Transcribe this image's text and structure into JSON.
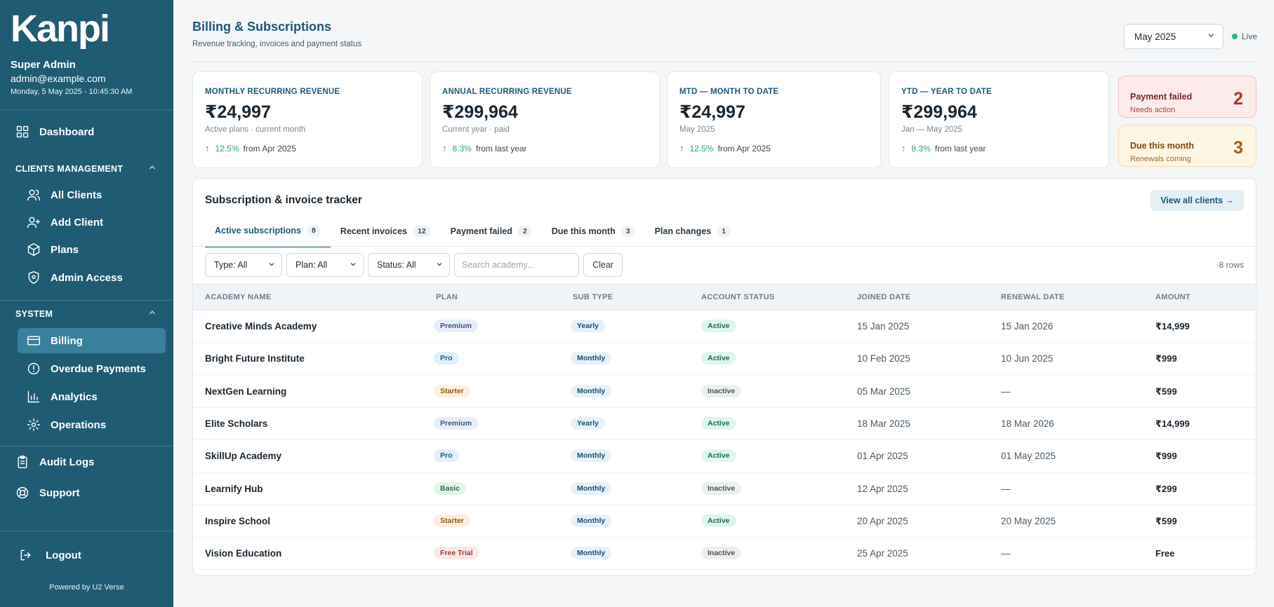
{
  "sidebar": {
    "logo": "Kanpi",
    "user_name": "Super Admin",
    "user_email": "admin@example.com",
    "user_date": "Monday, 5 May 2025 - 10:45:30 AM",
    "dashboard": "Dashboard",
    "clients_section": "CLIENTS MANAGEMENT",
    "clients_items": [
      "All Clients",
      "Add Client",
      "Plans",
      "Admin Access"
    ],
    "system_section": "SYSTEM",
    "system_items": [
      "Billing",
      "Overdue Payments",
      "Analytics",
      "Operations"
    ],
    "audit_logs": "Audit Logs",
    "support": "Support",
    "logout": "Logout",
    "powered": "Powered by U2 Verse"
  },
  "header": {
    "title": "Billing & Subscriptions",
    "subtitle": "Revenue tracking, invoices and payment status",
    "month": "May 2025",
    "live": "Live"
  },
  "kpis": [
    {
      "label": "MONTHLY RECURRING REVENUE",
      "value": "₹24,997",
      "sub": "Active plans · current month",
      "pct": "12.5%",
      "trend": "from Apr 2025"
    },
    {
      "label": "ANNUAL RECURRING REVENUE",
      "value": "₹299,964",
      "sub": "Current year · paid",
      "pct": "8.3%",
      "trend": "from last year"
    },
    {
      "label": "MTD — MONTH TO DATE",
      "value": "₹24,997",
      "sub": "May 2025",
      "pct": "12.5%",
      "trend": "from Apr 2025"
    },
    {
      "label": "YTD — YEAR TO DATE",
      "value": "₹299,964",
      "sub": "Jan — May 2025",
      "pct": "8.3%",
      "trend": "from last year"
    }
  ],
  "alerts": {
    "failed": {
      "title": "Payment failed",
      "sub": "Needs action",
      "count": "2"
    },
    "due": {
      "title": "Due this month",
      "sub": "Renewals coming",
      "count": "3"
    }
  },
  "tracker": {
    "title": "Subscription & invoice tracker",
    "view_all": "View all clients →",
    "tabs": [
      {
        "label": "Active subscriptions",
        "count": "8"
      },
      {
        "label": "Recent invoices",
        "count": "12"
      },
      {
        "label": "Payment failed",
        "count": "2"
      },
      {
        "label": "Due this month",
        "count": "3"
      },
      {
        "label": "Plan changes",
        "count": "1"
      }
    ],
    "filters": {
      "type": "Type: All",
      "plan": "Plan: All",
      "status": "Status: All",
      "search_placeholder": "Search academy...",
      "clear": "Clear"
    },
    "rows_count": "8 rows",
    "columns": [
      "ACADEMY NAME",
      "PLAN",
      "SUB TYPE",
      "ACCOUNT STATUS",
      "JOINED DATE",
      "RENEWAL DATE",
      "AMOUNT"
    ],
    "rows": [
      {
        "name": "Creative Minds Academy",
        "plan": "Premium",
        "sub": "Yearly",
        "status": "Active",
        "joined": "15 Jan 2025",
        "renewal": "15 Jan 2026",
        "amount": "₹14,999"
      },
      {
        "name": "Bright Future Institute",
        "plan": "Pro",
        "sub": "Monthly",
        "status": "Active",
        "joined": "10 Feb 2025",
        "renewal": "10 Jun 2025",
        "amount": "₹999"
      },
      {
        "name": "NextGen Learning",
        "plan": "Starter",
        "sub": "Monthly",
        "status": "Inactive",
        "joined": "05 Mar 2025",
        "renewal": "—",
        "amount": "₹599"
      },
      {
        "name": "Elite Scholars",
        "plan": "Premium",
        "sub": "Yearly",
        "status": "Active",
        "joined": "18 Mar 2025",
        "renewal": "18 Mar 2026",
        "amount": "₹14,999"
      },
      {
        "name": "SkillUp Academy",
        "plan": "Pro",
        "sub": "Monthly",
        "status": "Active",
        "joined": "01 Apr 2025",
        "renewal": "01 May 2025",
        "amount": "₹999"
      },
      {
        "name": "Learnify Hub",
        "plan": "Basic",
        "sub": "Monthly",
        "status": "Inactive",
        "joined": "12 Apr 2025",
        "renewal": "—",
        "amount": "₹299"
      },
      {
        "name": "Inspire School",
        "plan": "Starter",
        "sub": "Monthly",
        "status": "Active",
        "joined": "20 Apr 2025",
        "renewal": "20 May 2025",
        "amount": "₹599"
      },
      {
        "name": "Vision Education",
        "plan": "Free Trial",
        "sub": "Monthly",
        "status": "Inactive",
        "joined": "25 Apr 2025",
        "renewal": "—",
        "amount": "Free"
      }
    ]
  },
  "colors": {
    "sidebar": "#1f5c73",
    "accent": "#1d5a78",
    "positive": "#2fa374"
  }
}
